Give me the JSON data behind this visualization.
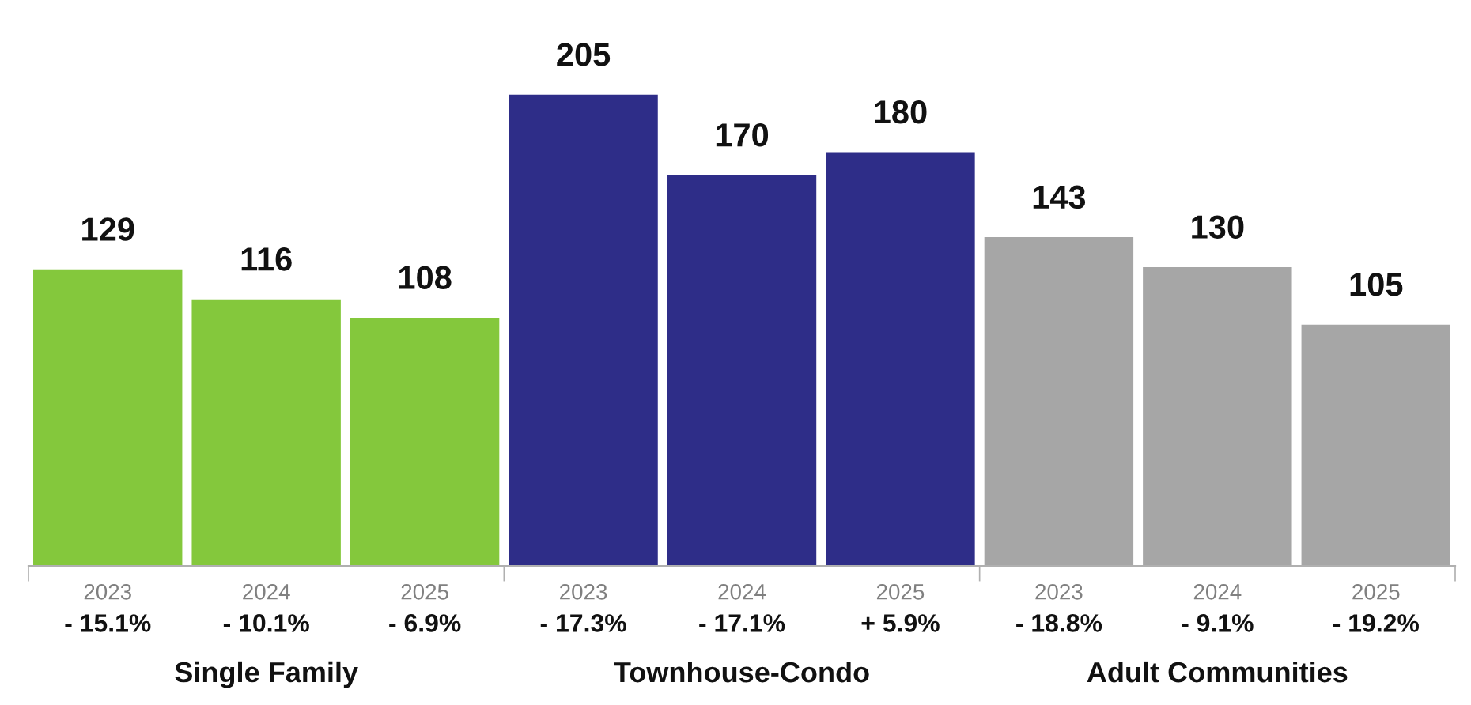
{
  "chart_data": {
    "type": "bar",
    "categories": [
      "2023",
      "2024",
      "2025",
      "2023",
      "2024",
      "2025",
      "2023",
      "2024",
      "2025"
    ],
    "values": [
      129,
      116,
      108,
      205,
      170,
      180,
      143,
      130,
      105
    ],
    "colors": [
      "#84c83c",
      "#84c83c",
      "#84c83c",
      "#2e2d88",
      "#2e2d88",
      "#2e2d88",
      "#a6a6a6",
      "#a6a6a6",
      "#a6a6a6"
    ],
    "data_labels": true,
    "grid": false,
    "legend": false,
    "annotations": [
      "- 15.1%",
      "- 10.1%",
      "- 6.9%",
      "- 17.3%",
      "- 17.1%",
      "+ 5.9%",
      "- 18.8%",
      "- 9.1%",
      "- 19.2%",
      "Single Family",
      "Townhouse-Condo",
      "Adult Communities"
    ]
  }
}
